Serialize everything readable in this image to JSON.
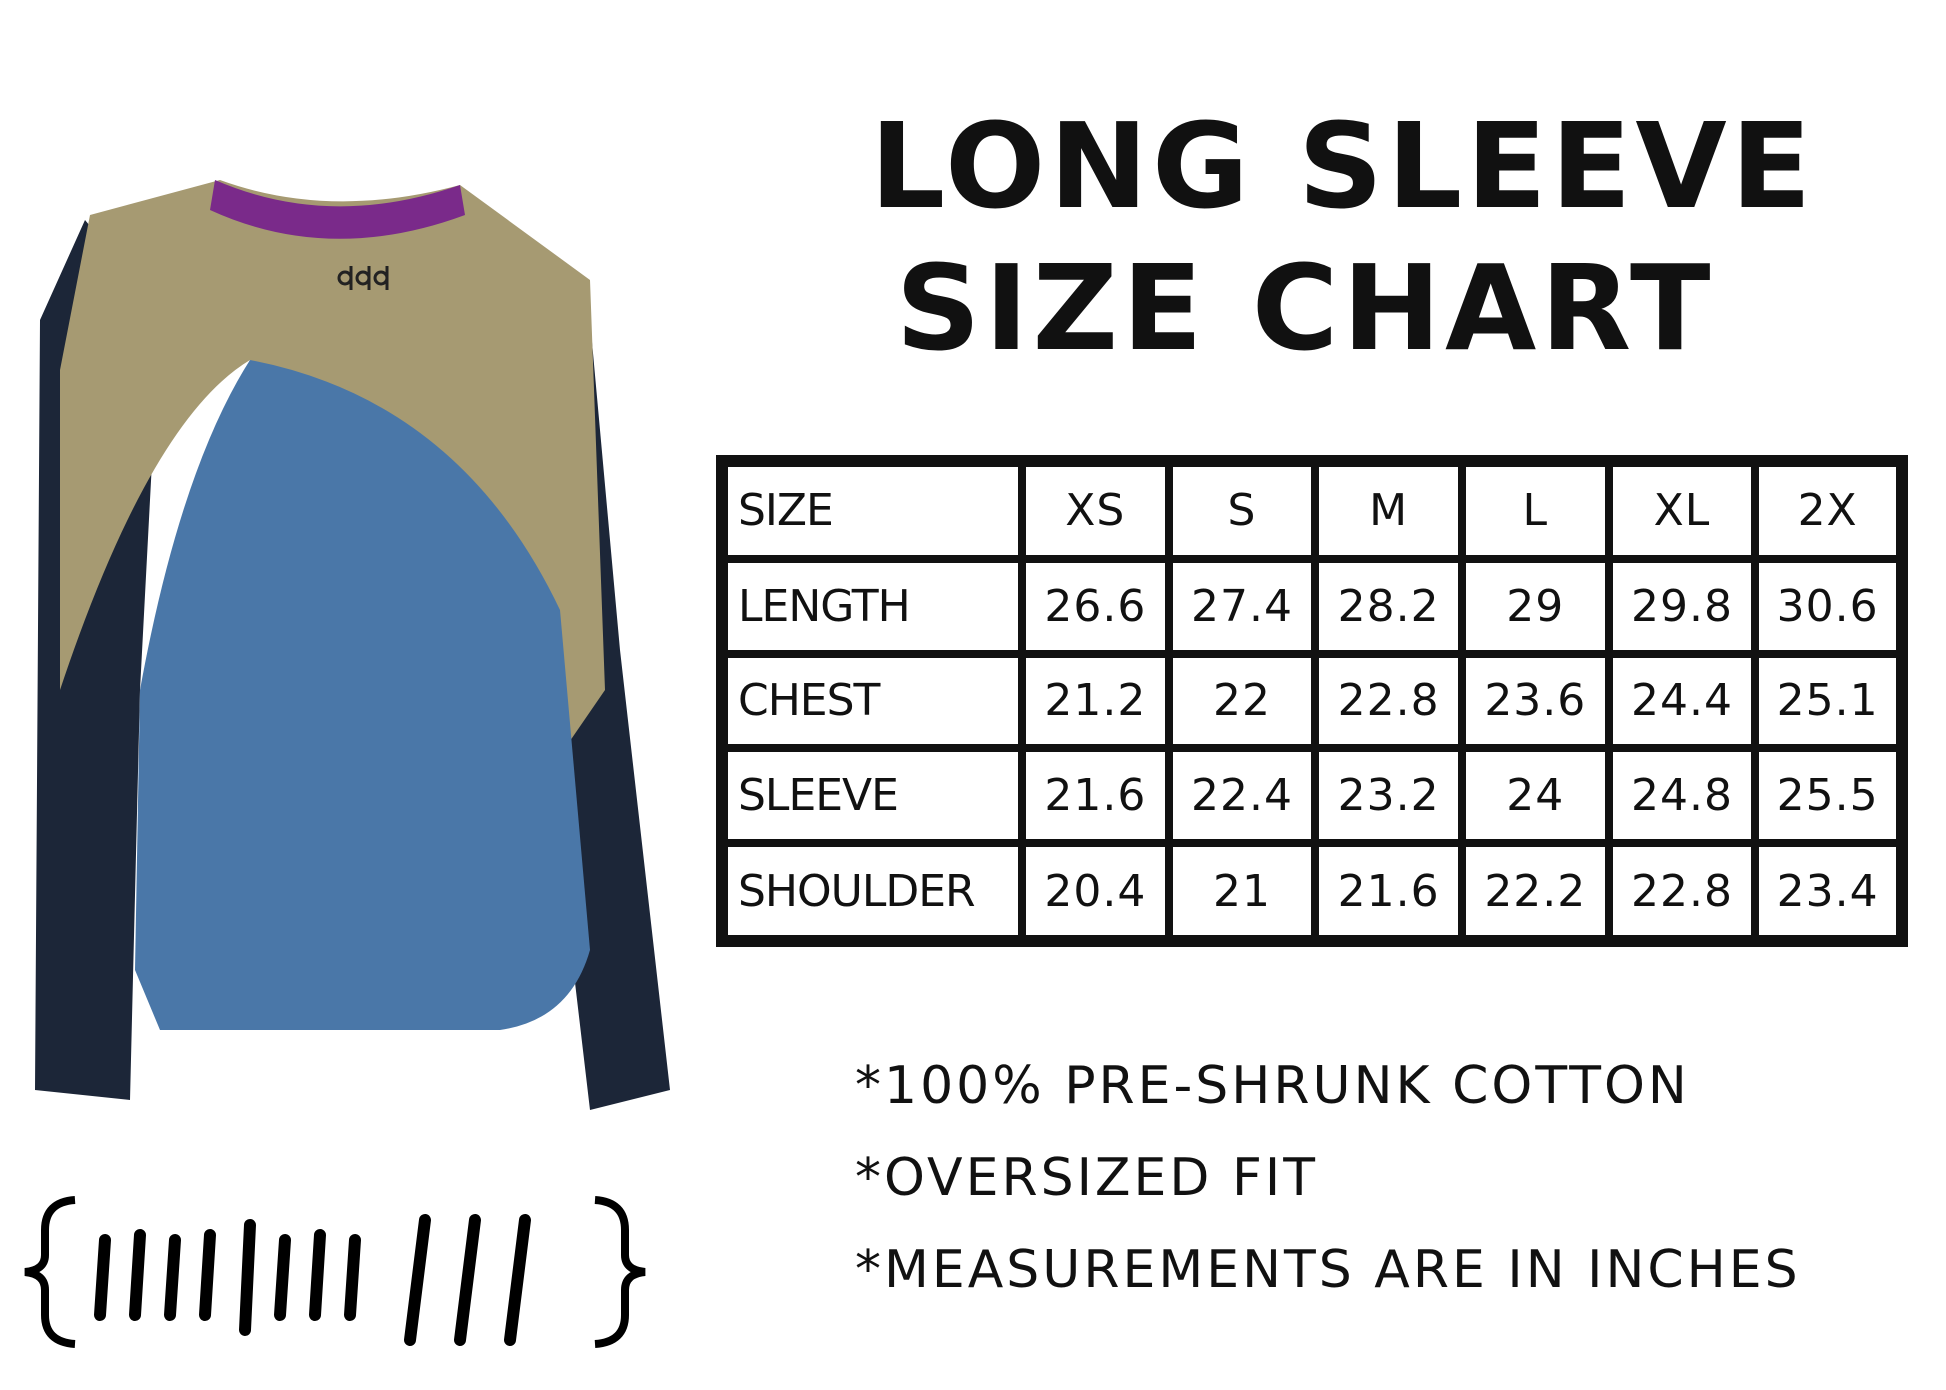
{
  "title": {
    "line1": "LONG SLEEVE",
    "line2": "SIZE CHART"
  },
  "table": {
    "header": [
      "SIZE",
      "XS",
      "S",
      "M",
      "L",
      "XL",
      "2X"
    ],
    "rows": [
      {
        "label": "LENGTH",
        "values": [
          "26.6",
          "27.4",
          "28.2",
          "29",
          "29.8",
          "30.6"
        ]
      },
      {
        "label": "CHEST",
        "values": [
          "21.2",
          "22",
          "22.8",
          "23.6",
          "24.4",
          "25.1"
        ]
      },
      {
        "label": "SLEEVE",
        "values": [
          "21.6",
          "22.4",
          "23.2",
          "24",
          "24.8",
          "25.5"
        ]
      },
      {
        "label": "SHOULDER",
        "values": [
          "20.4",
          "21",
          "21.6",
          "22.2",
          "22.8",
          "23.4"
        ]
      }
    ]
  },
  "notes": [
    "*100% PRE-SHRUNK COTTON",
    "*OVERSIZED FIT",
    "*MEASUREMENTS ARE IN INCHES"
  ],
  "colors": {
    "collar": "#7a2a8a",
    "yoke": "#a69a72",
    "body": "#4a77a8",
    "sleeve": "#1c2638",
    "ink": "#111111"
  }
}
